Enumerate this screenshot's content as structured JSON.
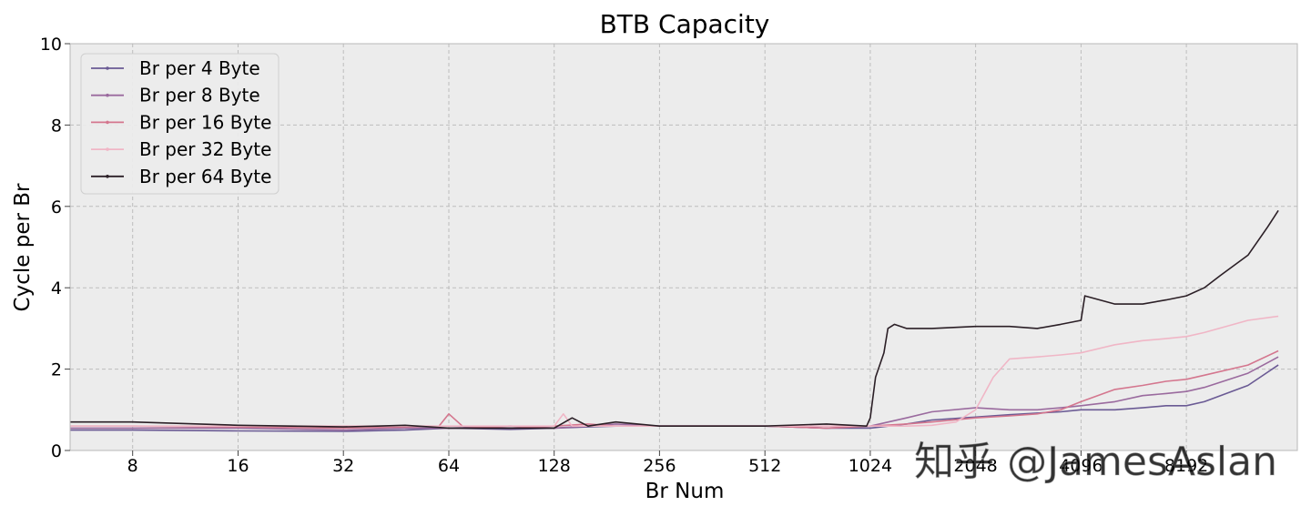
{
  "chart_data": {
    "type": "line",
    "title": "BTB Capacity",
    "xlabel": "Br Num",
    "ylabel": "Cycle per Br",
    "x_scale": "log2",
    "xlim": [
      5.3,
      17000
    ],
    "ylim": [
      0,
      10
    ],
    "x_ticks": [
      8,
      16,
      32,
      64,
      128,
      256,
      512,
      1024,
      2048,
      4096,
      8192
    ],
    "x_tick_labels": [
      "8",
      "16",
      "32",
      "64",
      "128",
      "256",
      "512",
      "1024",
      "2048",
      "4096",
      "8192"
    ],
    "y_ticks": [
      0,
      2,
      4,
      6,
      8,
      10
    ],
    "y_tick_labels": [
      "0",
      "2",
      "4",
      "6",
      "8",
      "10"
    ],
    "grid": true,
    "legend_position": "top-left",
    "watermark": "知乎 @JamesAslan",
    "series": [
      {
        "name": "Br per 4 Byte",
        "color": "#6a5a94",
        "x": [
          5.3,
          8,
          16,
          32,
          48,
          64,
          96,
          128,
          160,
          192,
          256,
          384,
          512,
          768,
          1024,
          1300,
          1536,
          2048,
          2560,
          3072,
          3584,
          4096,
          5120,
          6144,
          7168,
          8192,
          9216,
          12288,
          15000
        ],
        "y": [
          0.5,
          0.5,
          0.48,
          0.47,
          0.5,
          0.55,
          0.52,
          0.55,
          0.58,
          0.6,
          0.6,
          0.6,
          0.6,
          0.55,
          0.55,
          0.65,
          0.75,
          0.82,
          0.88,
          0.92,
          0.95,
          1.0,
          1.0,
          1.05,
          1.1,
          1.1,
          1.2,
          1.6,
          2.1
        ]
      },
      {
        "name": "Br per 8 Byte",
        "color": "#9a6a9e",
        "x": [
          5.3,
          8,
          16,
          32,
          48,
          64,
          96,
          128,
          160,
          192,
          256,
          384,
          512,
          768,
          1024,
          1300,
          1536,
          2048,
          2560,
          3072,
          3584,
          4096,
          5120,
          6144,
          7168,
          8192,
          9216,
          12288,
          15000
        ],
        "y": [
          0.55,
          0.55,
          0.55,
          0.5,
          0.55,
          0.55,
          0.6,
          0.55,
          0.6,
          0.65,
          0.6,
          0.6,
          0.6,
          0.55,
          0.6,
          0.8,
          0.95,
          1.05,
          1.0,
          1.0,
          1.05,
          1.1,
          1.2,
          1.35,
          1.4,
          1.45,
          1.55,
          1.9,
          2.3
        ]
      },
      {
        "name": "Br per 16 Byte",
        "color": "#d4768e",
        "x": [
          5.3,
          8,
          16,
          32,
          48,
          60,
          64,
          70,
          96,
          128,
          160,
          192,
          256,
          384,
          512,
          768,
          1024,
          1300,
          1536,
          2048,
          2560,
          3072,
          3584,
          4096,
          5120,
          6144,
          7168,
          8192,
          9216,
          12288,
          15000
        ],
        "y": [
          0.6,
          0.6,
          0.58,
          0.55,
          0.58,
          0.6,
          0.9,
          0.6,
          0.55,
          0.6,
          0.65,
          0.6,
          0.6,
          0.6,
          0.6,
          0.55,
          0.6,
          0.65,
          0.7,
          0.8,
          0.85,
          0.9,
          1.0,
          1.2,
          1.5,
          1.6,
          1.7,
          1.75,
          1.85,
          2.1,
          2.45
        ]
      },
      {
        "name": "Br per 32 Byte",
        "color": "#f0b6c6",
        "x": [
          5.3,
          8,
          16,
          32,
          48,
          64,
          96,
          128,
          136,
          144,
          192,
          256,
          384,
          512,
          768,
          1024,
          1300,
          1536,
          1800,
          2048,
          2300,
          2560,
          3072,
          3584,
          4096,
          5120,
          6144,
          7168,
          8192,
          9216,
          12288,
          15000
        ],
        "y": [
          0.6,
          0.6,
          0.6,
          0.6,
          0.6,
          0.6,
          0.6,
          0.6,
          0.9,
          0.6,
          0.6,
          0.6,
          0.6,
          0.6,
          0.6,
          0.6,
          0.6,
          0.62,
          0.7,
          1.0,
          1.8,
          2.25,
          2.3,
          2.35,
          2.4,
          2.6,
          2.7,
          2.75,
          2.8,
          2.9,
          3.2,
          3.3
        ]
      },
      {
        "name": "Br per 64 Byte",
        "color": "#2b1f26",
        "x": [
          5.3,
          8,
          16,
          32,
          40,
          48,
          64,
          96,
          128,
          144,
          160,
          192,
          256,
          384,
          512,
          768,
          1000,
          1024,
          1060,
          1120,
          1150,
          1200,
          1300,
          1536,
          2048,
          2560,
          3072,
          3584,
          4096,
          4200,
          5120,
          6144,
          7168,
          8192,
          9216,
          10240,
          12288,
          14000,
          15000
        ],
        "y": [
          0.7,
          0.7,
          0.62,
          0.58,
          0.6,
          0.62,
          0.55,
          0.55,
          0.55,
          0.8,
          0.6,
          0.7,
          0.6,
          0.6,
          0.6,
          0.65,
          0.6,
          0.8,
          1.8,
          2.4,
          3.0,
          3.1,
          3.0,
          3.0,
          3.05,
          3.05,
          3.0,
          3.1,
          3.2,
          3.8,
          3.6,
          3.6,
          3.7,
          3.8,
          4.0,
          4.3,
          4.8,
          5.5,
          5.9
        ]
      }
    ]
  }
}
